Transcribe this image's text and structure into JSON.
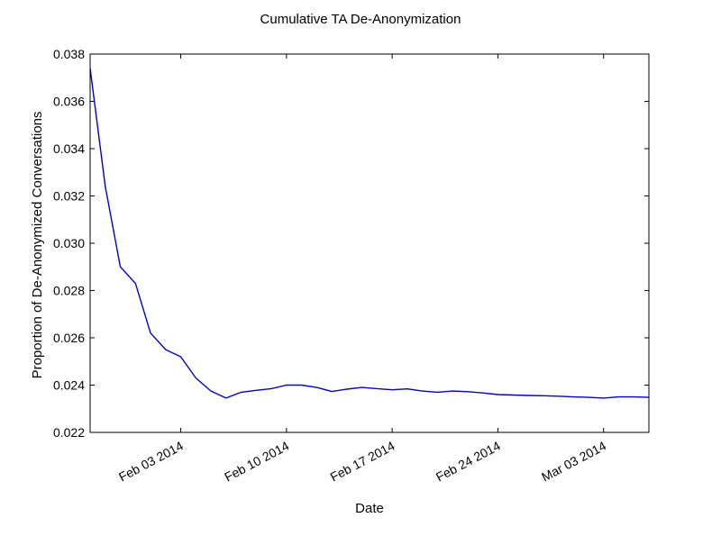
{
  "chart_data": {
    "type": "line",
    "title": "Cumulative TA De-Anonymization",
    "xlabel": "Date",
    "ylabel": "Proportion of De-Anonymized Conversations",
    "ylim": [
      0.022,
      0.038
    ],
    "xlim": [
      "2014-01-28",
      "2014-03-06"
    ],
    "yticks": [
      0.022,
      0.024,
      0.026,
      0.028,
      0.03,
      0.032,
      0.034,
      0.036,
      0.038
    ],
    "ytick_labels": [
      "0.022",
      "0.024",
      "0.026",
      "0.028",
      "0.030",
      "0.032",
      "0.034",
      "0.036",
      "0.038"
    ],
    "xticks": [
      "2014-02-03",
      "2014-02-10",
      "2014-02-17",
      "2014-02-24",
      "2014-03-03"
    ],
    "xtick_labels": [
      "Feb 03 2014",
      "Feb 10 2014",
      "Feb 17 2014",
      "Feb 24 2014",
      "Mar 03 2014"
    ],
    "grid": false,
    "line_color": "#0000cc",
    "series": [
      {
        "x": [
          "2014-01-28",
          "2014-01-29",
          "2014-01-30",
          "2014-01-31",
          "2014-02-01",
          "2014-02-02",
          "2014-02-03",
          "2014-02-04",
          "2014-02-05",
          "2014-02-06",
          "2014-02-07",
          "2014-02-08",
          "2014-02-09",
          "2014-02-10",
          "2014-02-11",
          "2014-02-12",
          "2014-02-13",
          "2014-02-14",
          "2014-02-15",
          "2014-02-16",
          "2014-02-17",
          "2014-02-18",
          "2014-02-19",
          "2014-02-20",
          "2014-02-21",
          "2014-02-22",
          "2014-02-23",
          "2014-02-24",
          "2014-02-25",
          "2014-02-26",
          "2014-02-27",
          "2014-02-28",
          "2014-03-01",
          "2014-03-02",
          "2014-03-03",
          "2014-03-04",
          "2014-03-05",
          "2014-03-06"
        ],
        "y": [
          0.0374,
          0.0324,
          0.029,
          0.0283,
          0.0262,
          0.0255,
          0.0252,
          0.0243,
          0.02375,
          0.02345,
          0.0237,
          0.02378,
          0.02385,
          0.024,
          0.024,
          0.0239,
          0.02373,
          0.02383,
          0.0239,
          0.02385,
          0.0238,
          0.02384,
          0.02375,
          0.0237,
          0.02375,
          0.02372,
          0.02367,
          0.0236,
          0.02358,
          0.02356,
          0.02355,
          0.02353,
          0.0235,
          0.02348,
          0.02345,
          0.0235,
          0.0235,
          0.02348
        ]
      }
    ]
  }
}
